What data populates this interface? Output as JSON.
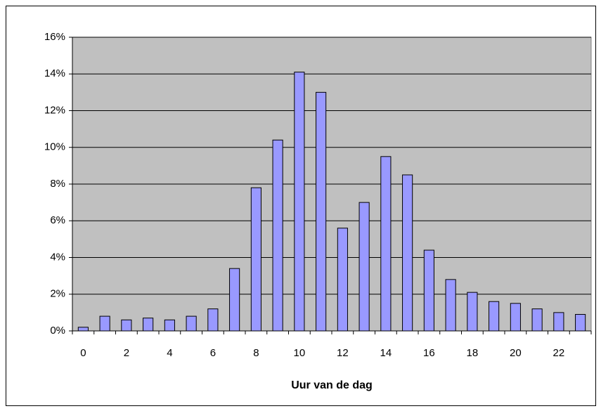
{
  "chart_data": {
    "type": "bar",
    "xlabel": "Uur van de dag",
    "categories": [
      "0",
      null,
      "2",
      null,
      "4",
      null,
      "6",
      null,
      "8",
      null,
      "10",
      null,
      "12",
      null,
      "14",
      null,
      "16",
      null,
      "18",
      null,
      "20",
      null,
      "22",
      null
    ],
    "values": [
      0.2,
      0.8,
      0.6,
      0.7,
      0.6,
      0.8,
      1.2,
      3.4,
      7.8,
      10.4,
      14.1,
      13.0,
      5.6,
      7.0,
      9.5,
      8.5,
      4.4,
      2.8,
      2.1,
      1.6,
      1.5,
      1.2,
      1.0,
      0.9
    ],
    "color": "#9999ff",
    "ylim": [
      0,
      16
    ],
    "yticks": [
      {
        "value": 0,
        "label": "0%"
      },
      {
        "value": 2,
        "label": "2%"
      },
      {
        "value": 4,
        "label": "4%"
      },
      {
        "value": 6,
        "label": "6%"
      },
      {
        "value": 8,
        "label": "8%"
      },
      {
        "value": 10,
        "label": "10%"
      },
      {
        "value": 12,
        "label": "12%"
      },
      {
        "value": 14,
        "label": "14%"
      },
      {
        "value": 16,
        "label": "16%"
      }
    ],
    "grid": true
  }
}
